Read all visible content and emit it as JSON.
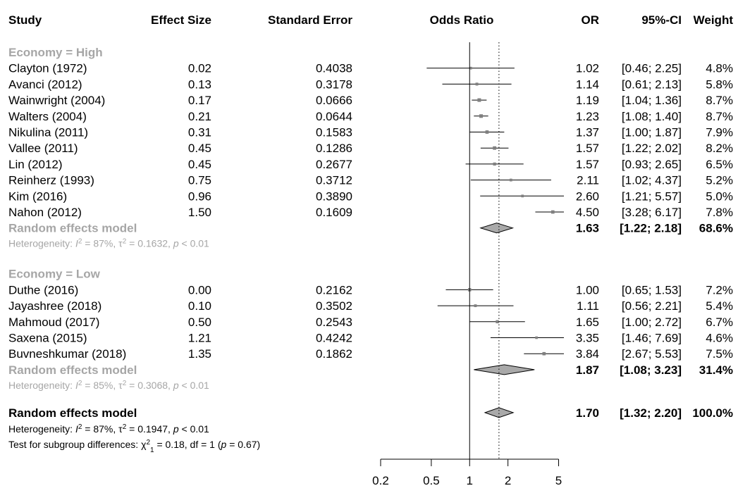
{
  "headers": {
    "study": "Study",
    "effect_size": "Effect Size",
    "standard_error": "Standard Error",
    "plot": "Odds Ratio",
    "or": "OR",
    "ci": "95%-CI",
    "weight": "Weight"
  },
  "chart_data": {
    "type": "forest",
    "x_scale": "log",
    "xlim": [
      0.2,
      5.5
    ],
    "x_ticks": [
      "0.2",
      "0.5",
      "1",
      "2",
      "5"
    ],
    "reference_line": 1,
    "overall_line": 1.7,
    "subgroups": [
      {
        "label": "Economy = High",
        "studies": [
          {
            "study": "Clayton (1972)",
            "effect": "0.02",
            "se": "0.4038",
            "or": 1.02,
            "lower": 0.46,
            "upper": 2.25,
            "or_text": "1.02",
            "ci_text": "[0.46; 2.25]",
            "weight": "4.8%"
          },
          {
            "study": "Avanci (2012)",
            "effect": "0.13",
            "se": "0.3178",
            "or": 1.14,
            "lower": 0.61,
            "upper": 2.13,
            "or_text": "1.14",
            "ci_text": "[0.61; 2.13]",
            "weight": "5.8%"
          },
          {
            "study": "Wainwright (2004)",
            "effect": "0.17",
            "se": "0.0666",
            "or": 1.19,
            "lower": 1.04,
            "upper": 1.36,
            "or_text": "1.19",
            "ci_text": "[1.04; 1.36]",
            "weight": "8.7%"
          },
          {
            "study": "Walters (2004)",
            "effect": "0.21",
            "se": "0.0644",
            "or": 1.23,
            "lower": 1.08,
            "upper": 1.4,
            "or_text": "1.23",
            "ci_text": "[1.08; 1.40]",
            "weight": "8.7%"
          },
          {
            "study": "Nikulina (2011)",
            "effect": "0.31",
            "se": "0.1583",
            "or": 1.37,
            "lower": 1.0,
            "upper": 1.87,
            "or_text": "1.37",
            "ci_text": "[1.00; 1.87]",
            "weight": "7.9%"
          },
          {
            "study": "Vallee (2011)",
            "effect": "0.45",
            "se": "0.1286",
            "or": 1.57,
            "lower": 1.22,
            "upper": 2.02,
            "or_text": "1.57",
            "ci_text": "[1.22; 2.02]",
            "weight": "8.2%"
          },
          {
            "study": "Lin (2012)",
            "effect": "0.45",
            "se": "0.2677",
            "or": 1.57,
            "lower": 0.93,
            "upper": 2.65,
            "or_text": "1.57",
            "ci_text": "[0.93; 2.65]",
            "weight": "6.5%"
          },
          {
            "study": "Reinherz (1993)",
            "effect": "0.75",
            "se": "0.3712",
            "or": 2.11,
            "lower": 1.02,
            "upper": 4.37,
            "or_text": "2.11",
            "ci_text": "[1.02; 4.37]",
            "weight": "5.2%"
          },
          {
            "study": "Kim (2016)",
            "effect": "0.96",
            "se": "0.3890",
            "or": 2.6,
            "lower": 1.21,
            "upper": 5.57,
            "or_text": "2.60",
            "ci_text": "[1.21; 5.57]",
            "weight": "5.0%"
          },
          {
            "study": "Nahon (2012)",
            "effect": "1.50",
            "se": "0.1609",
            "or": 4.5,
            "lower": 3.28,
            "upper": 6.17,
            "or_text": "4.50",
            "ci_text": "[3.28; 6.17]",
            "weight": "7.8%"
          }
        ],
        "model": {
          "label": "Random effects model",
          "or": 1.63,
          "lower": 1.22,
          "upper": 2.18,
          "or_text": "1.63",
          "ci_text": "[1.22; 2.18]",
          "weight": "68.6%"
        },
        "heterogeneity": {
          "prefix": "Heterogeneity: ",
          "i2": "87%",
          "tau2": "0.1632",
          "p": "p < 0.01"
        }
      },
      {
        "label": "Economy = Low",
        "studies": [
          {
            "study": "Duthe (2016)",
            "effect": "0.00",
            "se": "0.2162",
            "or": 1.0,
            "lower": 0.65,
            "upper": 1.53,
            "or_text": "1.00",
            "ci_text": "[0.65; 1.53]",
            "weight": "7.2%"
          },
          {
            "study": "Jayashree (2018)",
            "effect": "0.10",
            "se": "0.3502",
            "or": 1.11,
            "lower": 0.56,
            "upper": 2.21,
            "or_text": "1.11",
            "ci_text": "[0.56; 2.21]",
            "weight": "5.4%"
          },
          {
            "study": "Mahmoud (2017)",
            "effect": "0.50",
            "se": "0.2543",
            "or": 1.65,
            "lower": 1.0,
            "upper": 2.72,
            "or_text": "1.65",
            "ci_text": "[1.00; 2.72]",
            "weight": "6.7%"
          },
          {
            "study": "Saxena (2015)",
            "effect": "1.21",
            "se": "0.4242",
            "or": 3.35,
            "lower": 1.46,
            "upper": 7.69,
            "or_text": "3.35",
            "ci_text": "[1.46; 7.69]",
            "weight": "4.6%"
          },
          {
            "study": "Buvneshkumar (2018)",
            "effect": "1.35",
            "se": "0.1862",
            "or": 3.84,
            "lower": 2.67,
            "upper": 5.53,
            "or_text": "3.84",
            "ci_text": "[2.67; 5.53]",
            "weight": "7.5%"
          }
        ],
        "model": {
          "label": "Random effects model",
          "or": 1.87,
          "lower": 1.08,
          "upper": 3.23,
          "or_text": "1.87",
          "ci_text": "[1.08; 3.23]",
          "weight": "31.4%"
        },
        "heterogeneity": {
          "prefix": "Heterogeneity: ",
          "i2": "85%",
          "tau2": "0.3068",
          "p": "p < 0.01"
        }
      }
    ],
    "overall": {
      "label": "Random effects model",
      "or": 1.7,
      "lower": 1.32,
      "upper": 2.2,
      "or_text": "1.70",
      "ci_text": "[1.32; 2.20]",
      "weight": "100.0%",
      "heterogeneity": {
        "prefix": "Heterogeneity: ",
        "i2": "87%",
        "tau2": "0.1947",
        "p": "p < 0.01"
      },
      "subgroup_test": {
        "prefix": "Test for subgroup differences: ",
        "chi2": "0.18",
        "df_text": "df = 1",
        "p": "p = 0.67"
      }
    }
  },
  "colors": {
    "text": "#000000",
    "label_grey": "#a6a6a6",
    "diamond_fill": "#a9a9a9",
    "square": "#808080"
  }
}
